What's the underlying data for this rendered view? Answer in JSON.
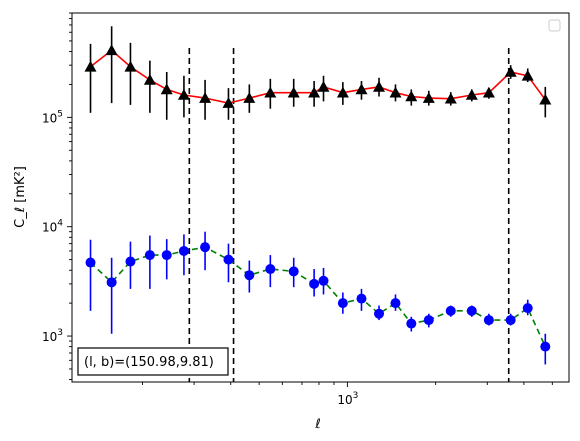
{
  "chart_data": {
    "type": "scatter",
    "xlabel": "ℓ",
    "ylabel": "C_ℓ [mK²]",
    "xscale": "log",
    "yscale": "log",
    "xlim": [
      115,
      5700
    ],
    "ylim": [
      380,
      900000
    ],
    "x_tick_labels": [
      {
        "value": 1000,
        "base": "10",
        "exp": "3"
      }
    ],
    "y_tick_labels": [
      {
        "value": 1000,
        "base": "10",
        "exp": "3"
      },
      {
        "value": 10000,
        "base": "10",
        "exp": "4"
      },
      {
        "value": 100000,
        "base": "10",
        "exp": "5"
      }
    ],
    "vlines": [
      289,
      409,
      3550
    ],
    "annotation": {
      "text": "(l, b)=(150.98,9.81)"
    },
    "legend": {
      "position": "top-right",
      "entries": []
    },
    "series": [
      {
        "color": "#000000",
        "line_color": "#ff0000",
        "line_style": "solid",
        "marker": "triangle",
        "x": [
          133,
          157,
          182,
          212,
          242,
          277,
          327,
          393,
          463,
          546,
          656,
          770,
          829,
          965,
          1117,
          1282,
          1459,
          1652,
          1895,
          2252,
          2656,
          3038,
          3605,
          4122,
          4732
        ],
        "y": [
          290000,
          410000,
          290000,
          220000,
          180000,
          160000,
          150000,
          135000,
          150000,
          168000,
          168000,
          168000,
          190000,
          168000,
          180000,
          190000,
          168000,
          155000,
          150000,
          148000,
          160000,
          168000,
          260000,
          240000,
          145000
        ],
        "yerr_low": [
          110000,
          135000,
          130000,
          110000,
          95000,
          100000,
          95000,
          95000,
          110000,
          120000,
          125000,
          125000,
          140000,
          130000,
          145000,
          155000,
          140000,
          128000,
          128000,
          128000,
          140000,
          148000,
          225000,
          210000,
          100000
        ],
        "yerr_high": [
          470000,
          680000,
          480000,
          330000,
          260000,
          240000,
          220000,
          185000,
          200000,
          225000,
          225000,
          215000,
          240000,
          210000,
          215000,
          230000,
          200000,
          180000,
          175000,
          170000,
          180000,
          185000,
          300000,
          280000,
          190000
        ]
      },
      {
        "color": "#0000ff",
        "line_color": "#008000",
        "line_style": "dashed",
        "marker": "circle",
        "x": [
          133,
          157,
          182,
          212,
          242,
          277,
          327,
          393,
          463,
          546,
          656,
          770,
          829,
          965,
          1117,
          1282,
          1459,
          1652,
          1895,
          2252,
          2656,
          3038,
          3605,
          4122,
          4732
        ],
        "y": [
          4700,
          3100,
          4800,
          5500,
          5500,
          6000,
          6500,
          5000,
          3600,
          4100,
          3900,
          3000,
          3200,
          2000,
          2200,
          1600,
          2000,
          1300,
          1400,
          1700,
          1700,
          1400,
          1400,
          1800,
          800
        ],
        "yerr_low": [
          1700,
          1050,
          2700,
          2700,
          3300,
          3600,
          4000,
          3100,
          2500,
          2800,
          2800,
          2300,
          2400,
          1600,
          1700,
          1400,
          1700,
          1100,
          1200,
          1500,
          1500,
          1250,
          1250,
          1550,
          550
        ],
        "yerr_high": [
          7600,
          5200,
          7300,
          8300,
          7700,
          8500,
          9000,
          7000,
          4900,
          5500,
          5200,
          4100,
          4200,
          2500,
          2700,
          1900,
          2400,
          1500,
          1600,
          1900,
          1900,
          1600,
          1600,
          2150,
          1050
        ]
      }
    ]
  }
}
